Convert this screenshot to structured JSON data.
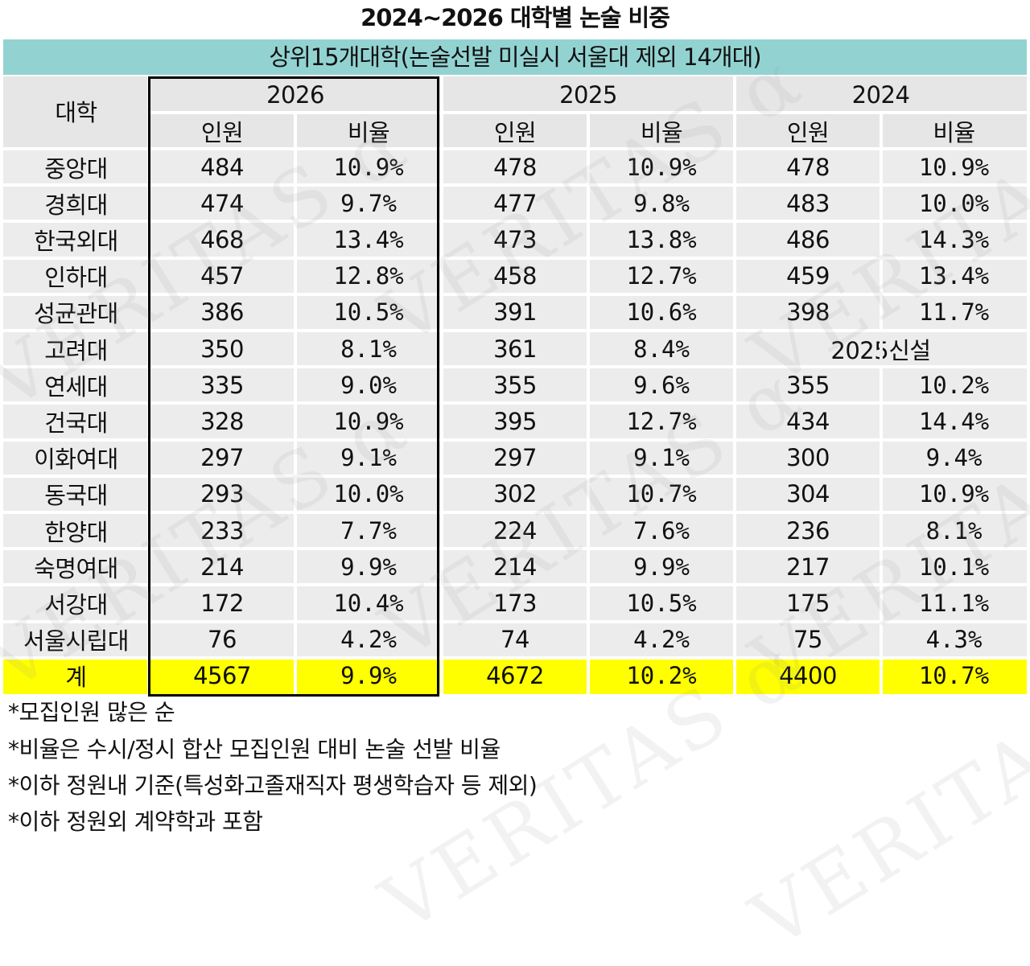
{
  "title": "2024~2026 대학별 논술 비중",
  "chart_data": {
    "type": "table",
    "subtitle": "상위15개대학(논술선발 미실시 서울대 제외 14개대)",
    "university_header": "대학",
    "years": [
      "2026",
      "2025",
      "2024"
    ],
    "sub_headers": [
      "인원",
      "비율"
    ],
    "rows": [
      {
        "university": "중앙대",
        "y2026": {
          "count": 484,
          "rate": "10.9%"
        },
        "y2025": {
          "count": 478,
          "rate": "10.9%"
        },
        "y2024": {
          "count": 478,
          "rate": "10.9%"
        }
      },
      {
        "university": "경희대",
        "y2026": {
          "count": 474,
          "rate": "9.7%"
        },
        "y2025": {
          "count": 477,
          "rate": "9.8%"
        },
        "y2024": {
          "count": 483,
          "rate": "10.0%"
        }
      },
      {
        "university": "한국외대",
        "y2026": {
          "count": 468,
          "rate": "13.4%"
        },
        "y2025": {
          "count": 473,
          "rate": "13.8%"
        },
        "y2024": {
          "count": 486,
          "rate": "14.3%"
        }
      },
      {
        "university": "인하대",
        "y2026": {
          "count": 457,
          "rate": "12.8%"
        },
        "y2025": {
          "count": 458,
          "rate": "12.7%"
        },
        "y2024": {
          "count": 459,
          "rate": "13.4%"
        }
      },
      {
        "university": "성균관대",
        "y2026": {
          "count": 386,
          "rate": "10.5%"
        },
        "y2025": {
          "count": 391,
          "rate": "10.6%"
        },
        "y2024": {
          "count": 398,
          "rate": "11.7%"
        }
      },
      {
        "university": "고려대",
        "y2026": {
          "count": 350,
          "rate": "8.1%"
        },
        "y2025": {
          "count": 361,
          "rate": "8.4%"
        },
        "y2024": {
          "merged": "2025신설"
        }
      },
      {
        "university": "연세대",
        "y2026": {
          "count": 335,
          "rate": "9.0%"
        },
        "y2025": {
          "count": 355,
          "rate": "9.6%"
        },
        "y2024": {
          "count": 355,
          "rate": "10.2%"
        }
      },
      {
        "university": "건국대",
        "y2026": {
          "count": 328,
          "rate": "10.9%"
        },
        "y2025": {
          "count": 395,
          "rate": "12.7%"
        },
        "y2024": {
          "count": 434,
          "rate": "14.4%"
        }
      },
      {
        "university": "이화여대",
        "y2026": {
          "count": 297,
          "rate": "9.1%"
        },
        "y2025": {
          "count": 297,
          "rate": "9.1%"
        },
        "y2024": {
          "count": 300,
          "rate": "9.4%"
        }
      },
      {
        "university": "동국대",
        "y2026": {
          "count": 293,
          "rate": "10.0%"
        },
        "y2025": {
          "count": 302,
          "rate": "10.7%"
        },
        "y2024": {
          "count": 304,
          "rate": "10.9%"
        }
      },
      {
        "university": "한양대",
        "y2026": {
          "count": 233,
          "rate": "7.7%"
        },
        "y2025": {
          "count": 224,
          "rate": "7.6%"
        },
        "y2024": {
          "count": 236,
          "rate": "8.1%"
        }
      },
      {
        "university": "숙명여대",
        "y2026": {
          "count": 214,
          "rate": "9.9%"
        },
        "y2025": {
          "count": 214,
          "rate": "9.9%"
        },
        "y2024": {
          "count": 217,
          "rate": "10.1%"
        }
      },
      {
        "university": "서강대",
        "y2026": {
          "count": 172,
          "rate": "10.4%"
        },
        "y2025": {
          "count": 173,
          "rate": "10.5%"
        },
        "y2024": {
          "count": 175,
          "rate": "11.1%"
        }
      },
      {
        "university": "서울시립대",
        "y2026": {
          "count": 76,
          "rate": "4.2%"
        },
        "y2025": {
          "count": 74,
          "rate": "4.2%"
        },
        "y2024": {
          "count": 75,
          "rate": "4.3%"
        }
      }
    ],
    "total": {
      "university": "계",
      "y2026": {
        "count": 4567,
        "rate": "9.9%"
      },
      "y2025": {
        "count": 4672,
        "rate": "10.2%"
      },
      "y2024": {
        "count": 4400,
        "rate": "10.7%"
      }
    },
    "highlight_year": "2026"
  },
  "notes": [
    "*모집인원 많은 순",
    "*비율은 수시/정시 합산 모집인원 대비 논술 선발 비율",
    "*이하 정원내 기준(특성화고졸재직자 평생학습자 등 제외)",
    "*이하 정원외 계약학과 포함"
  ],
  "watermark": "VERITAS α",
  "colors": {
    "band": "#92d3d2",
    "header_bg": "#e6e6e6",
    "row_bg": "#ececec",
    "total_bg": "#ffff00",
    "box_border": "#000000"
  }
}
